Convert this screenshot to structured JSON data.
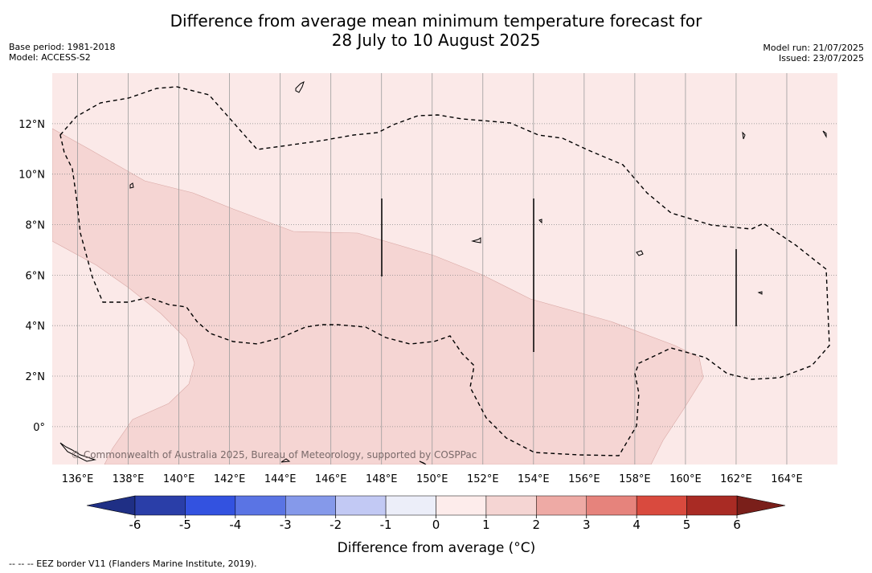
{
  "title_line1": "Difference from average mean minimum temperature forecast for",
  "title_line2": "28 July to 10 August 2025",
  "meta_left": [
    "Base period: 1981-2018",
    "Model: ACCESS-S2"
  ],
  "meta_right": [
    "Model run: 21/07/2025",
    "Issued: 23/07/2025"
  ],
  "map": {
    "lon_range": [
      135,
      166
    ],
    "lat_range": [
      -1.5,
      14
    ],
    "lon_ticks": [
      136,
      138,
      140,
      142,
      144,
      146,
      148,
      150,
      152,
      154,
      156,
      158,
      160,
      162,
      164
    ],
    "lon_tick_labels": [
      "136°E",
      "138°E",
      "140°E",
      "142°E",
      "144°E",
      "146°E",
      "148°E",
      "150°E",
      "152°E",
      "154°E",
      "156°E",
      "158°E",
      "160°E",
      "162°E",
      "164°E"
    ],
    "lat_ticks": [
      0,
      2,
      4,
      6,
      8,
      10,
      12
    ],
    "lat_tick_labels": [
      "0°",
      "2°N",
      "4°N",
      "6°N",
      "8°N",
      "10°N",
      "12°N"
    ],
    "background_category": "0 to 1",
    "shaded_region_category": "1 to 2",
    "copyright": "© Commonwealth of Australia 2025, Bureau of Meteorology, supported by COSPPac"
  },
  "colorbar": {
    "boundaries": [
      -6,
      -5,
      -4,
      -3,
      -2,
      -1,
      0,
      1,
      2,
      3,
      4,
      5,
      6
    ],
    "labels": [
      "-6",
      "-5",
      "-4",
      "-3",
      "-2",
      "-1",
      "0",
      "1",
      "2",
      "3",
      "4",
      "5",
      "6"
    ],
    "colors": [
      "#2a3ea8",
      "#3352e0",
      "#5a74e4",
      "#8599ea",
      "#c2c9f4",
      "#eceef9",
      "#fdeceb",
      "#f5d5d3",
      "#eeaaa5",
      "#e6837c",
      "#d94a3e",
      "#a92b24"
    ],
    "under_color": "#1f2f85",
    "over_color": "#7a1f1a",
    "title": "Difference from average ($^\\circ$C)",
    "title_display": "Difference from average (°C)"
  },
  "footnote": "--  --  -- EEZ border V11 (Flanders Marine Institute, 2019)."
}
